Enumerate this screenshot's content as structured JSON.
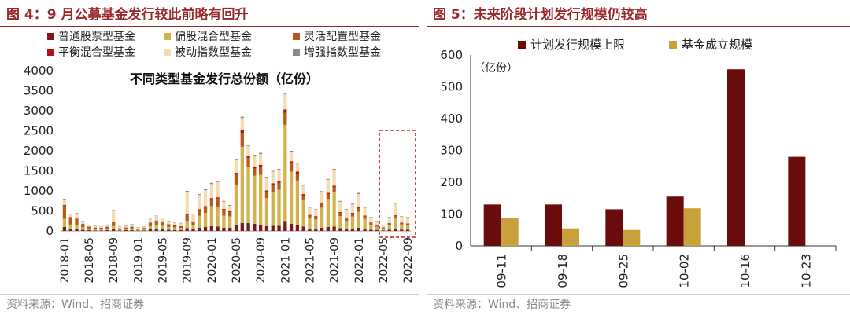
{
  "left": {
    "heading": "图 4：9 月公募基金发行较此前略有回升",
    "source": "资料来源：Wind、招商证券",
    "colors": {
      "普通股票型基金": "#7a1b1b",
      "偏股混合型基金": "#d2b24c",
      "灵活配置型基金": "#b45a1a",
      "平衡混合型基金": "#b31212",
      "被动指数型基金": "#f2dcb0",
      "增强指数型基金": "#8a8a8a"
    },
    "chart_data": {
      "type": "bar",
      "stacked": true,
      "title": "不同类型基金发行总份额（亿份）",
      "ylim": [
        0,
        4000
      ],
      "yticks": [
        "0",
        "500",
        "1000",
        "1500",
        "2000",
        "2500",
        "3000",
        "3500",
        "4000"
      ],
      "xtick_labels": [
        "2018-01",
        "2018-05",
        "2018-09",
        "2019-01",
        "2019-05",
        "2019-09",
        "2020-01",
        "2020-05",
        "2020-09",
        "2021-01",
        "2021-05",
        "2021-09",
        "2022-01",
        "2022-05",
        "2022-09"
      ],
      "legend_position": "top-left",
      "highlight_box": "2022-05 to 2022-09",
      "categories": [
        "2018-01",
        "2018-02",
        "2018-03",
        "2018-04",
        "2018-05",
        "2018-06",
        "2018-07",
        "2018-08",
        "2018-09",
        "2018-10",
        "2018-11",
        "2018-12",
        "2019-01",
        "2019-02",
        "2019-03",
        "2019-04",
        "2019-05",
        "2019-06",
        "2019-07",
        "2019-08",
        "2019-09",
        "2019-10",
        "2019-11",
        "2019-12",
        "2020-01",
        "2020-02",
        "2020-03",
        "2020-04",
        "2020-05",
        "2020-06",
        "2020-07",
        "2020-08",
        "2020-09",
        "2020-10",
        "2020-11",
        "2020-12",
        "2021-01",
        "2021-02",
        "2021-03",
        "2021-04",
        "2021-05",
        "2021-06",
        "2021-07",
        "2021-08",
        "2021-09",
        "2021-10",
        "2021-11",
        "2021-12",
        "2022-01",
        "2022-02",
        "2022-03",
        "2022-04",
        "2022-05",
        "2022-06",
        "2022-07",
        "2022-08",
        "2022-09"
      ],
      "totals": [
        800,
        420,
        450,
        250,
        150,
        130,
        120,
        160,
        520,
        110,
        140,
        170,
        90,
        110,
        300,
        380,
        330,
        250,
        220,
        200,
        1000,
        420,
        920,
        1050,
        1200,
        1250,
        750,
        650,
        1800,
        2850,
        2150,
        1900,
        1950,
        1350,
        1500,
        1550,
        3450,
        2000,
        1700,
        1150,
        580,
        550,
        1000,
        1300,
        1550,
        750,
        550,
        680,
        950,
        600,
        350,
        250,
        150,
        350,
        700,
        370,
        350
      ],
      "series": [
        {
          "name": "普通股票型基金",
          "values": [
            100,
            60,
            40,
            30,
            20,
            15,
            15,
            20,
            40,
            10,
            20,
            20,
            10,
            15,
            40,
            50,
            40,
            30,
            25,
            25,
            70,
            40,
            80,
            100,
            120,
            110,
            80,
            80,
            150,
            200,
            200,
            180,
            150,
            120,
            130,
            130,
            250,
            180,
            160,
            110,
            60,
            60,
            80,
            100,
            110,
            70,
            50,
            60,
            80,
            55,
            35,
            25,
            15,
            30,
            60,
            35,
            30
          ]
        },
        {
          "name": "偏股混合型基金",
          "values": [
            200,
            100,
            100,
            60,
            40,
            30,
            30,
            40,
            80,
            20,
            30,
            40,
            20,
            30,
            80,
            100,
            90,
            70,
            60,
            50,
            180,
            110,
            300,
            350,
            500,
            500,
            300,
            280,
            1000,
            1900,
            1400,
            1200,
            1250,
            700,
            850,
            900,
            2400,
            1300,
            1100,
            650,
            250,
            230,
            500,
            700,
            850,
            300,
            200,
            300,
            400,
            250,
            120,
            80,
            50,
            120,
            250,
            130,
            120
          ]
        },
        {
          "name": "灵活配置型基金",
          "values": [
            330,
            180,
            160,
            80,
            40,
            35,
            30,
            40,
            100,
            30,
            30,
            40,
            20,
            25,
            80,
            100,
            80,
            60,
            50,
            40,
            140,
            80,
            140,
            150,
            170,
            200,
            150,
            110,
            250,
            350,
            220,
            180,
            200,
            150,
            170,
            170,
            300,
            200,
            170,
            120,
            70,
            60,
            100,
            120,
            130,
            80,
            60,
            70,
            90,
            60,
            40,
            30,
            20,
            40,
            60,
            35,
            30
          ]
        },
        {
          "name": "平衡混合型基金",
          "values": [
            20,
            10,
            10,
            10,
            5,
            5,
            5,
            5,
            10,
            5,
            5,
            5,
            5,
            5,
            10,
            10,
            10,
            10,
            5,
            5,
            20,
            10,
            20,
            20,
            30,
            30,
            20,
            20,
            50,
            80,
            60,
            50,
            50,
            40,
            40,
            40,
            80,
            60,
            50,
            40,
            20,
            20,
            30,
            30,
            40,
            20,
            15,
            20,
            30,
            20,
            15,
            10,
            5,
            10,
            20,
            10,
            10
          ]
        },
        {
          "name": "被动指数型基金",
          "values": [
            130,
            60,
            130,
            60,
            40,
            40,
            35,
            50,
            270,
            40,
            50,
            60,
            30,
            30,
            80,
            110,
            100,
            70,
            70,
            70,
            570,
            170,
            360,
            400,
            350,
            380,
            180,
            140,
            320,
            290,
            240,
            260,
            270,
            320,
            290,
            290,
            390,
            240,
            200,
            210,
            170,
            170,
            280,
            330,
            400,
            260,
            210,
            210,
            320,
            195,
            130,
            95,
            55,
            140,
            290,
            150,
            150
          ]
        },
        {
          "name": "增强指数型基金",
          "values": [
            20,
            10,
            10,
            10,
            5,
            5,
            5,
            5,
            20,
            5,
            5,
            5,
            5,
            5,
            10,
            10,
            10,
            10,
            10,
            10,
            20,
            10,
            20,
            30,
            30,
            30,
            20,
            20,
            30,
            30,
            30,
            30,
            30,
            20,
            20,
            20,
            30,
            20,
            20,
            20,
            10,
            10,
            10,
            20,
            20,
            20,
            15,
            20,
            30,
            20,
            10,
            10,
            5,
            10,
            20,
            10,
            10
          ]
        }
      ]
    }
  },
  "right": {
    "heading": "图 5：未来阶段计划发行规模仍较高",
    "source": "资料来源：Wind、招商证券",
    "colors": {
      "计划发行规模上限": "#6b0c0c",
      "基金成立规模": "#c9a13a"
    },
    "chart_data": {
      "type": "bar",
      "unit_label": "（亿份）",
      "ylim": [
        0,
        600
      ],
      "yticks": [
        "0",
        "100",
        "200",
        "300",
        "400",
        "500",
        "600"
      ],
      "legend_position": "top",
      "categories": [
        "09-11",
        "09-18",
        "09-25",
        "10-02",
        "10-16",
        "10-23"
      ],
      "series": [
        {
          "name": "计划发行规模上限",
          "values": [
            130,
            130,
            115,
            155,
            555,
            280
          ]
        },
        {
          "name": "基金成立规模",
          "values": [
            88,
            55,
            50,
            118,
            null,
            null
          ]
        }
      ]
    }
  }
}
